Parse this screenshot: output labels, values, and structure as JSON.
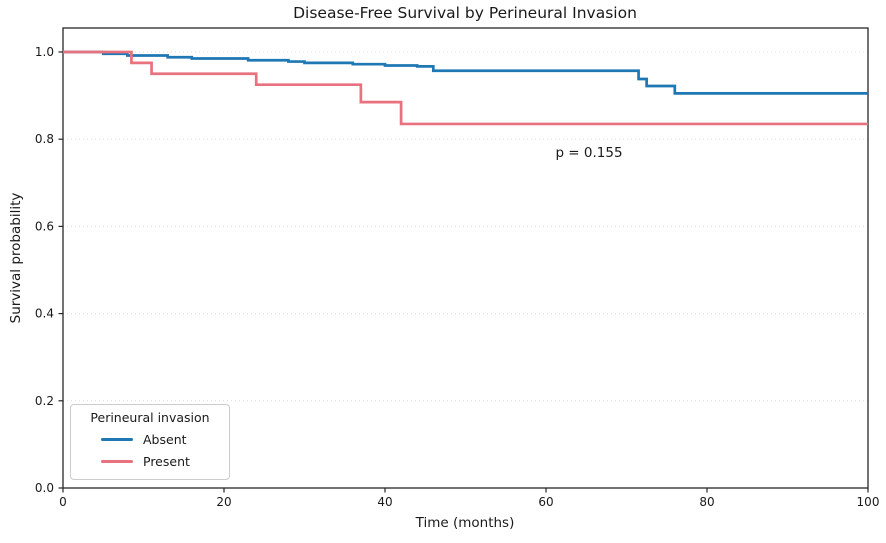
{
  "chart_data": {
    "type": "line",
    "subtype": "kaplan-meier-step",
    "title": "Disease-Free Survival by Perineural Invasion",
    "xlabel": "Time (months)",
    "ylabel": "Survival probability",
    "xlim": [
      0,
      100
    ],
    "ylim": [
      0,
      1.055
    ],
    "x_ticks": [
      0,
      20,
      40,
      60,
      80,
      100
    ],
    "y_ticks": [
      0.0,
      0.2,
      0.4,
      0.6,
      0.8,
      1.0
    ],
    "y_tick_labels": [
      "0.0",
      "0.2",
      "0.4",
      "0.6",
      "0.8",
      "1.0"
    ],
    "grid": {
      "axis": "y",
      "style": "dotted",
      "color": "#dcdcdc"
    },
    "annotation": {
      "text": "p = 0.155",
      "x": 65,
      "y": 0.77
    },
    "legend": {
      "title": "Perineural invasion",
      "position": "lower left"
    },
    "series": [
      {
        "name": "Absent",
        "color": "#1f77b4",
        "steps": [
          [
            0,
            1.0
          ],
          [
            5,
            0.996
          ],
          [
            8,
            0.992
          ],
          [
            13,
            0.988
          ],
          [
            16,
            0.985
          ],
          [
            23,
            0.981
          ],
          [
            28,
            0.978
          ],
          [
            30,
            0.975
          ],
          [
            36,
            0.972
          ],
          [
            40,
            0.969
          ],
          [
            44,
            0.967
          ],
          [
            46,
            0.957
          ],
          [
            71.5,
            0.938
          ],
          [
            72.5,
            0.922
          ],
          [
            76,
            0.905
          ],
          [
            100,
            0.905
          ]
        ]
      },
      {
        "name": "Present",
        "color": "#e8717f",
        "steps": [
          [
            0,
            1.0
          ],
          [
            8.5,
            0.975
          ],
          [
            11,
            0.95
          ],
          [
            24,
            0.925
          ],
          [
            37,
            0.885
          ],
          [
            42,
            0.835
          ],
          [
            100,
            0.835
          ]
        ]
      }
    ]
  }
}
